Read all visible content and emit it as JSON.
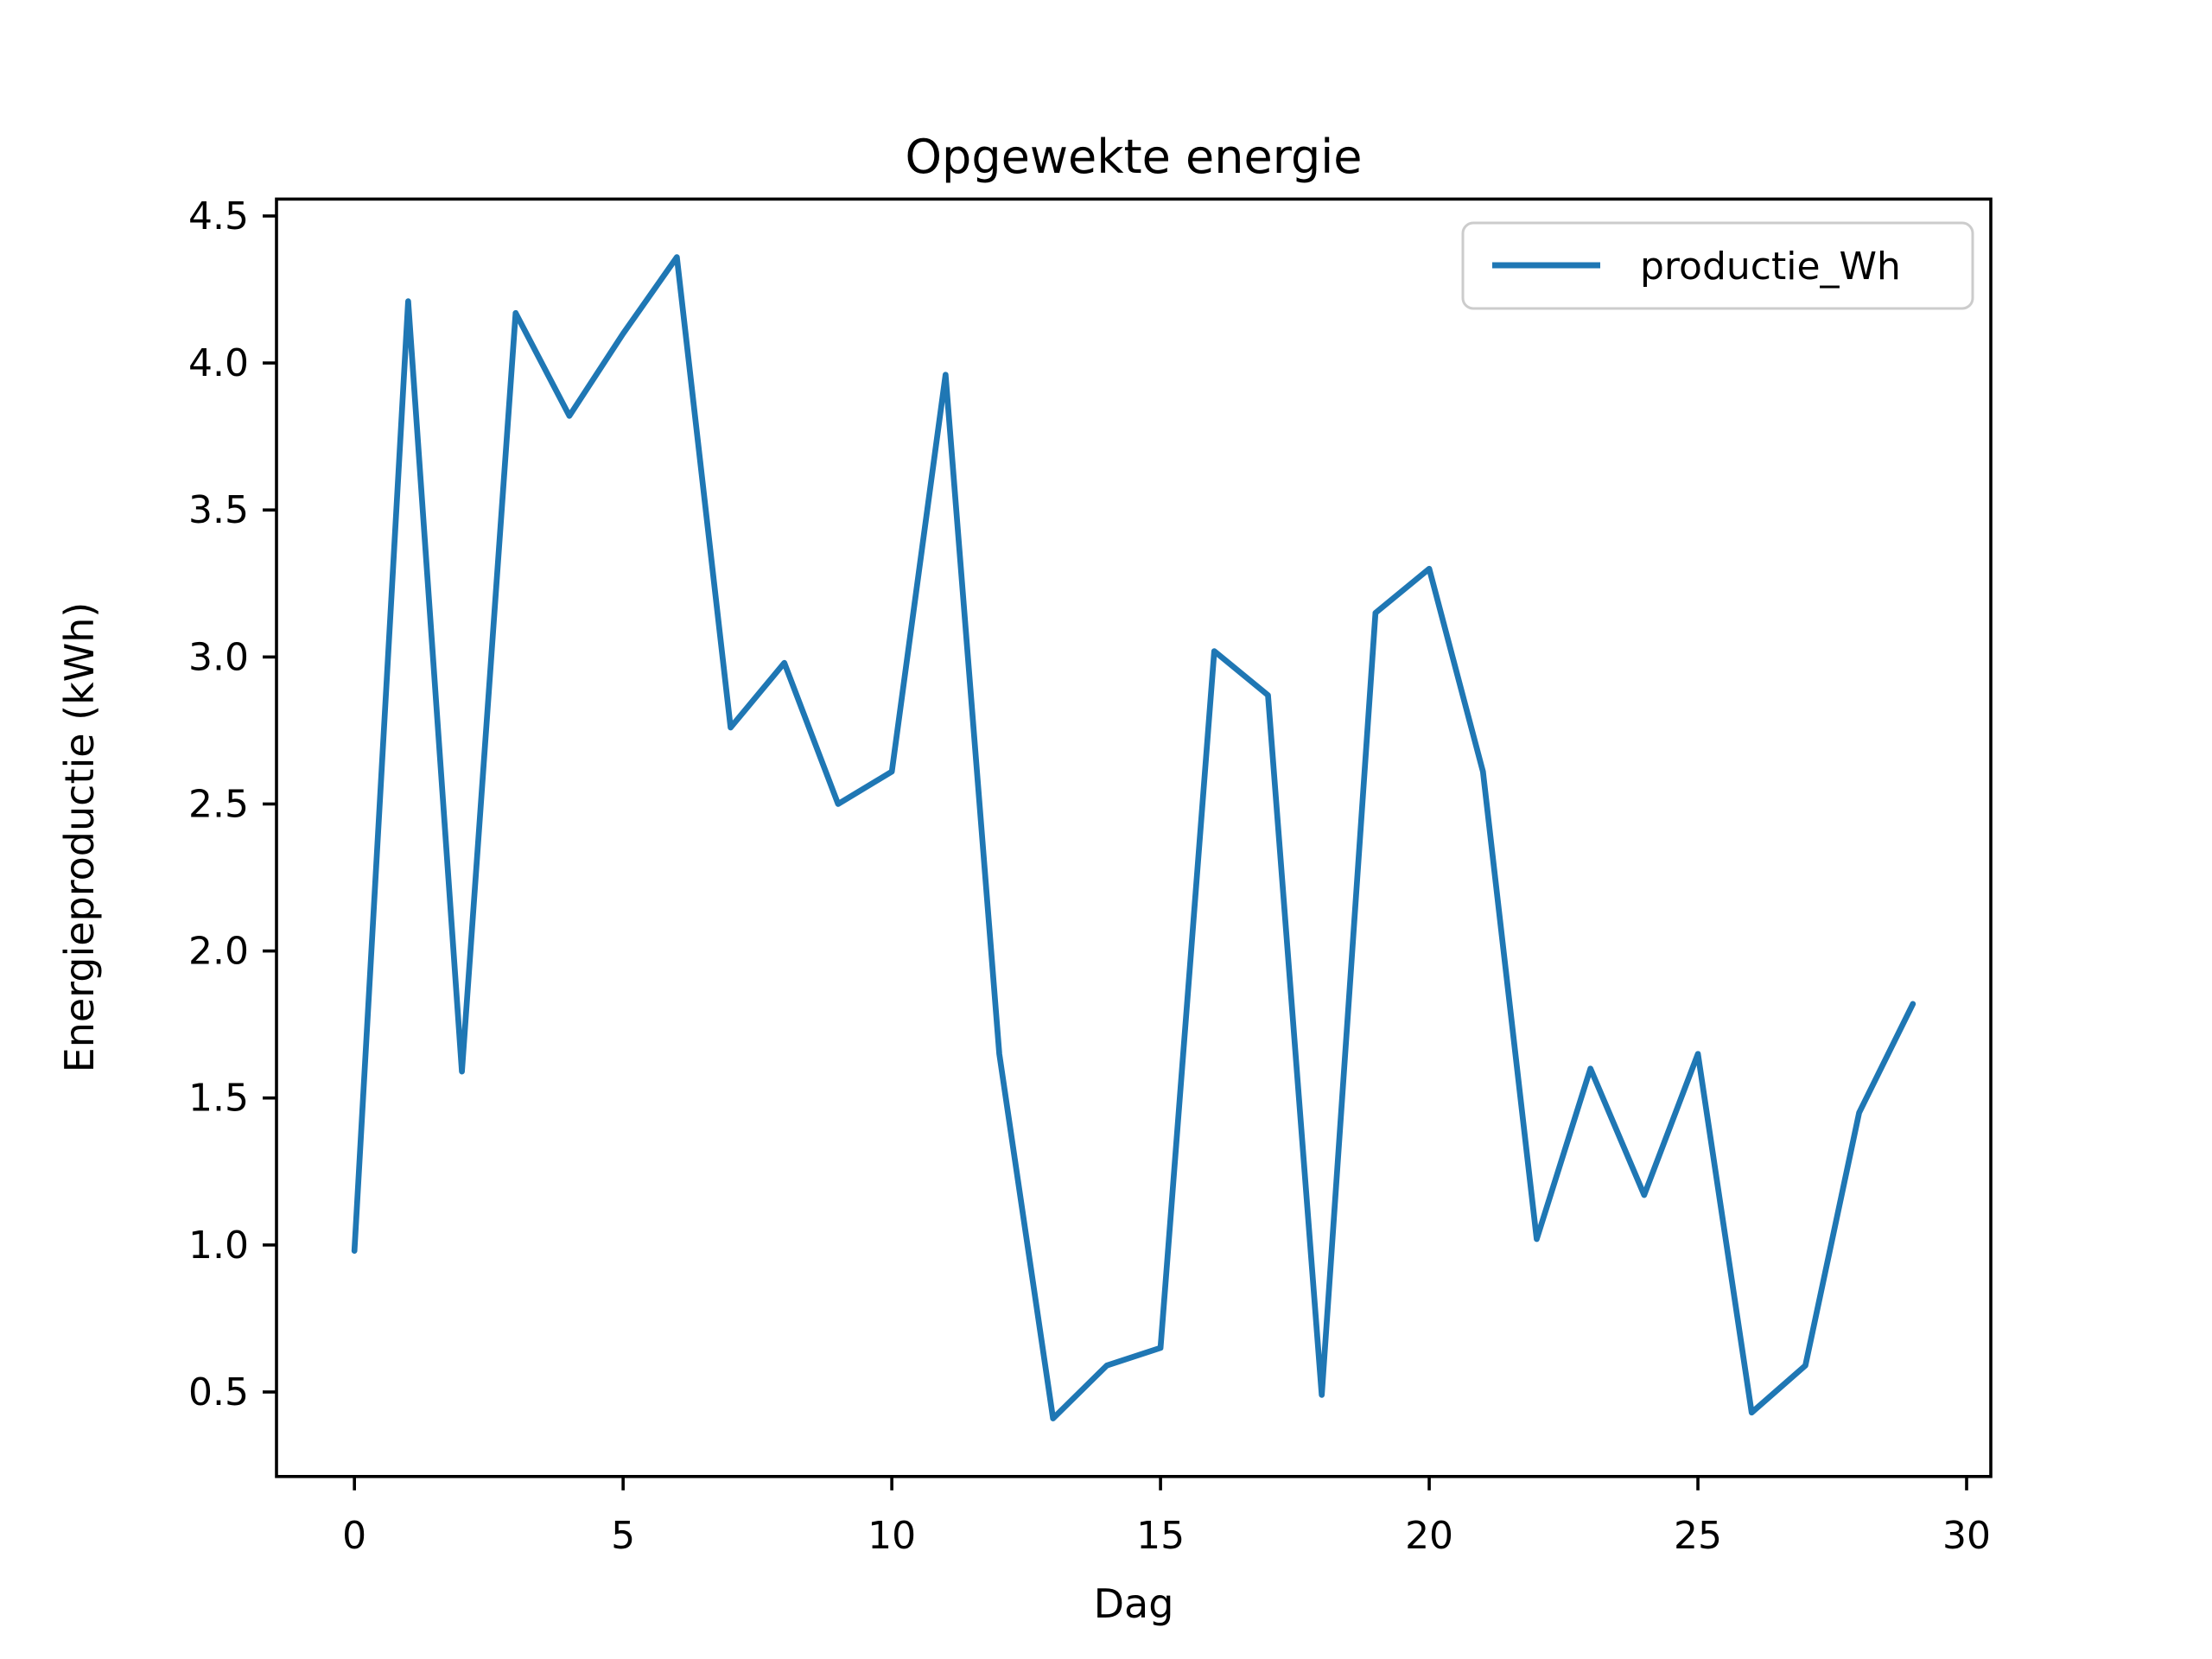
{
  "figure": {
    "background": "#ffffff",
    "spine_color": "#000000"
  },
  "chart_data": {
    "type": "line",
    "title": "Opgewekte energie",
    "xlabel": "Dag",
    "ylabel": "Energieproductie (kWh)",
    "grid": false,
    "legend": {
      "position": "upper right",
      "entries": [
        {
          "label": "productie_Wh",
          "color": "#1f77b4"
        }
      ]
    },
    "xlim": [
      -1.45,
      30.45
    ],
    "ylim": [
      0.2125,
      4.5575
    ],
    "x_ticks": [
      0,
      5,
      10,
      15,
      20,
      25,
      30
    ],
    "x_tick_labels": [
      "0",
      "5",
      "10",
      "15",
      "20",
      "25",
      "30"
    ],
    "y_ticks": [
      0.5,
      1.0,
      1.5,
      2.0,
      2.5,
      3.0,
      3.5,
      4.0,
      4.5
    ],
    "y_tick_labels": [
      "0.5",
      "1.0",
      "1.5",
      "2.0",
      "2.5",
      "3.0",
      "3.5",
      "4.0",
      "4.5"
    ],
    "series": [
      {
        "name": "productie_Wh",
        "color": "#1f77b4",
        "x": [
          0,
          1,
          2,
          3,
          4,
          5,
          6,
          7,
          8,
          9,
          10,
          11,
          12,
          13,
          14,
          15,
          16,
          17,
          18,
          19,
          20,
          21,
          22,
          23,
          24,
          25,
          26,
          27,
          28,
          29
        ],
        "values": [
          0.98,
          4.21,
          1.59,
          4.17,
          3.82,
          4.1,
          4.36,
          2.76,
          2.98,
          2.5,
          2.61,
          3.96,
          1.65,
          0.41,
          0.59,
          0.65,
          3.02,
          2.87,
          0.49,
          3.15,
          3.3,
          2.61,
          1.02,
          1.6,
          1.17,
          1.65,
          0.43,
          0.59,
          1.45,
          1.82
        ]
      }
    ]
  }
}
